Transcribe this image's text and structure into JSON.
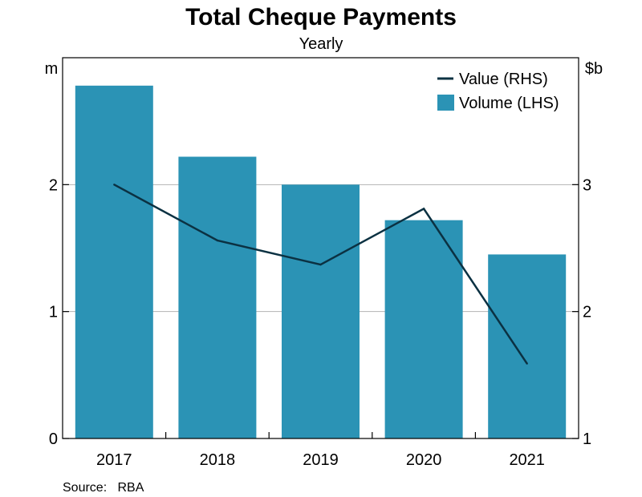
{
  "chart_data": {
    "type": "bar",
    "title": "Total Cheque Payments",
    "subtitle": "Yearly",
    "categories": [
      "2017",
      "2018",
      "2019",
      "2020",
      "2021"
    ],
    "left_axis": {
      "unit": "m",
      "ylim": [
        0,
        3
      ],
      "ticks": [
        "0",
        "1",
        "2"
      ]
    },
    "right_axis": {
      "unit": "$b",
      "ylim": [
        1,
        4
      ],
      "ticks": [
        "1",
        "2",
        "3"
      ]
    },
    "series": [
      {
        "name": "Volume (LHS)",
        "type": "bar",
        "axis": "left",
        "color": "#2B93B5",
        "values": [
          2.78,
          2.22,
          2.0,
          1.72,
          1.45
        ]
      },
      {
        "name": "Value (RHS)",
        "type": "line",
        "axis": "right",
        "color": "#0B3142",
        "values": [
          3.0,
          2.56,
          2.37,
          2.81,
          1.59
        ]
      }
    ],
    "grid": true,
    "legend_position": "top-right",
    "source": "Source:   RBA"
  }
}
